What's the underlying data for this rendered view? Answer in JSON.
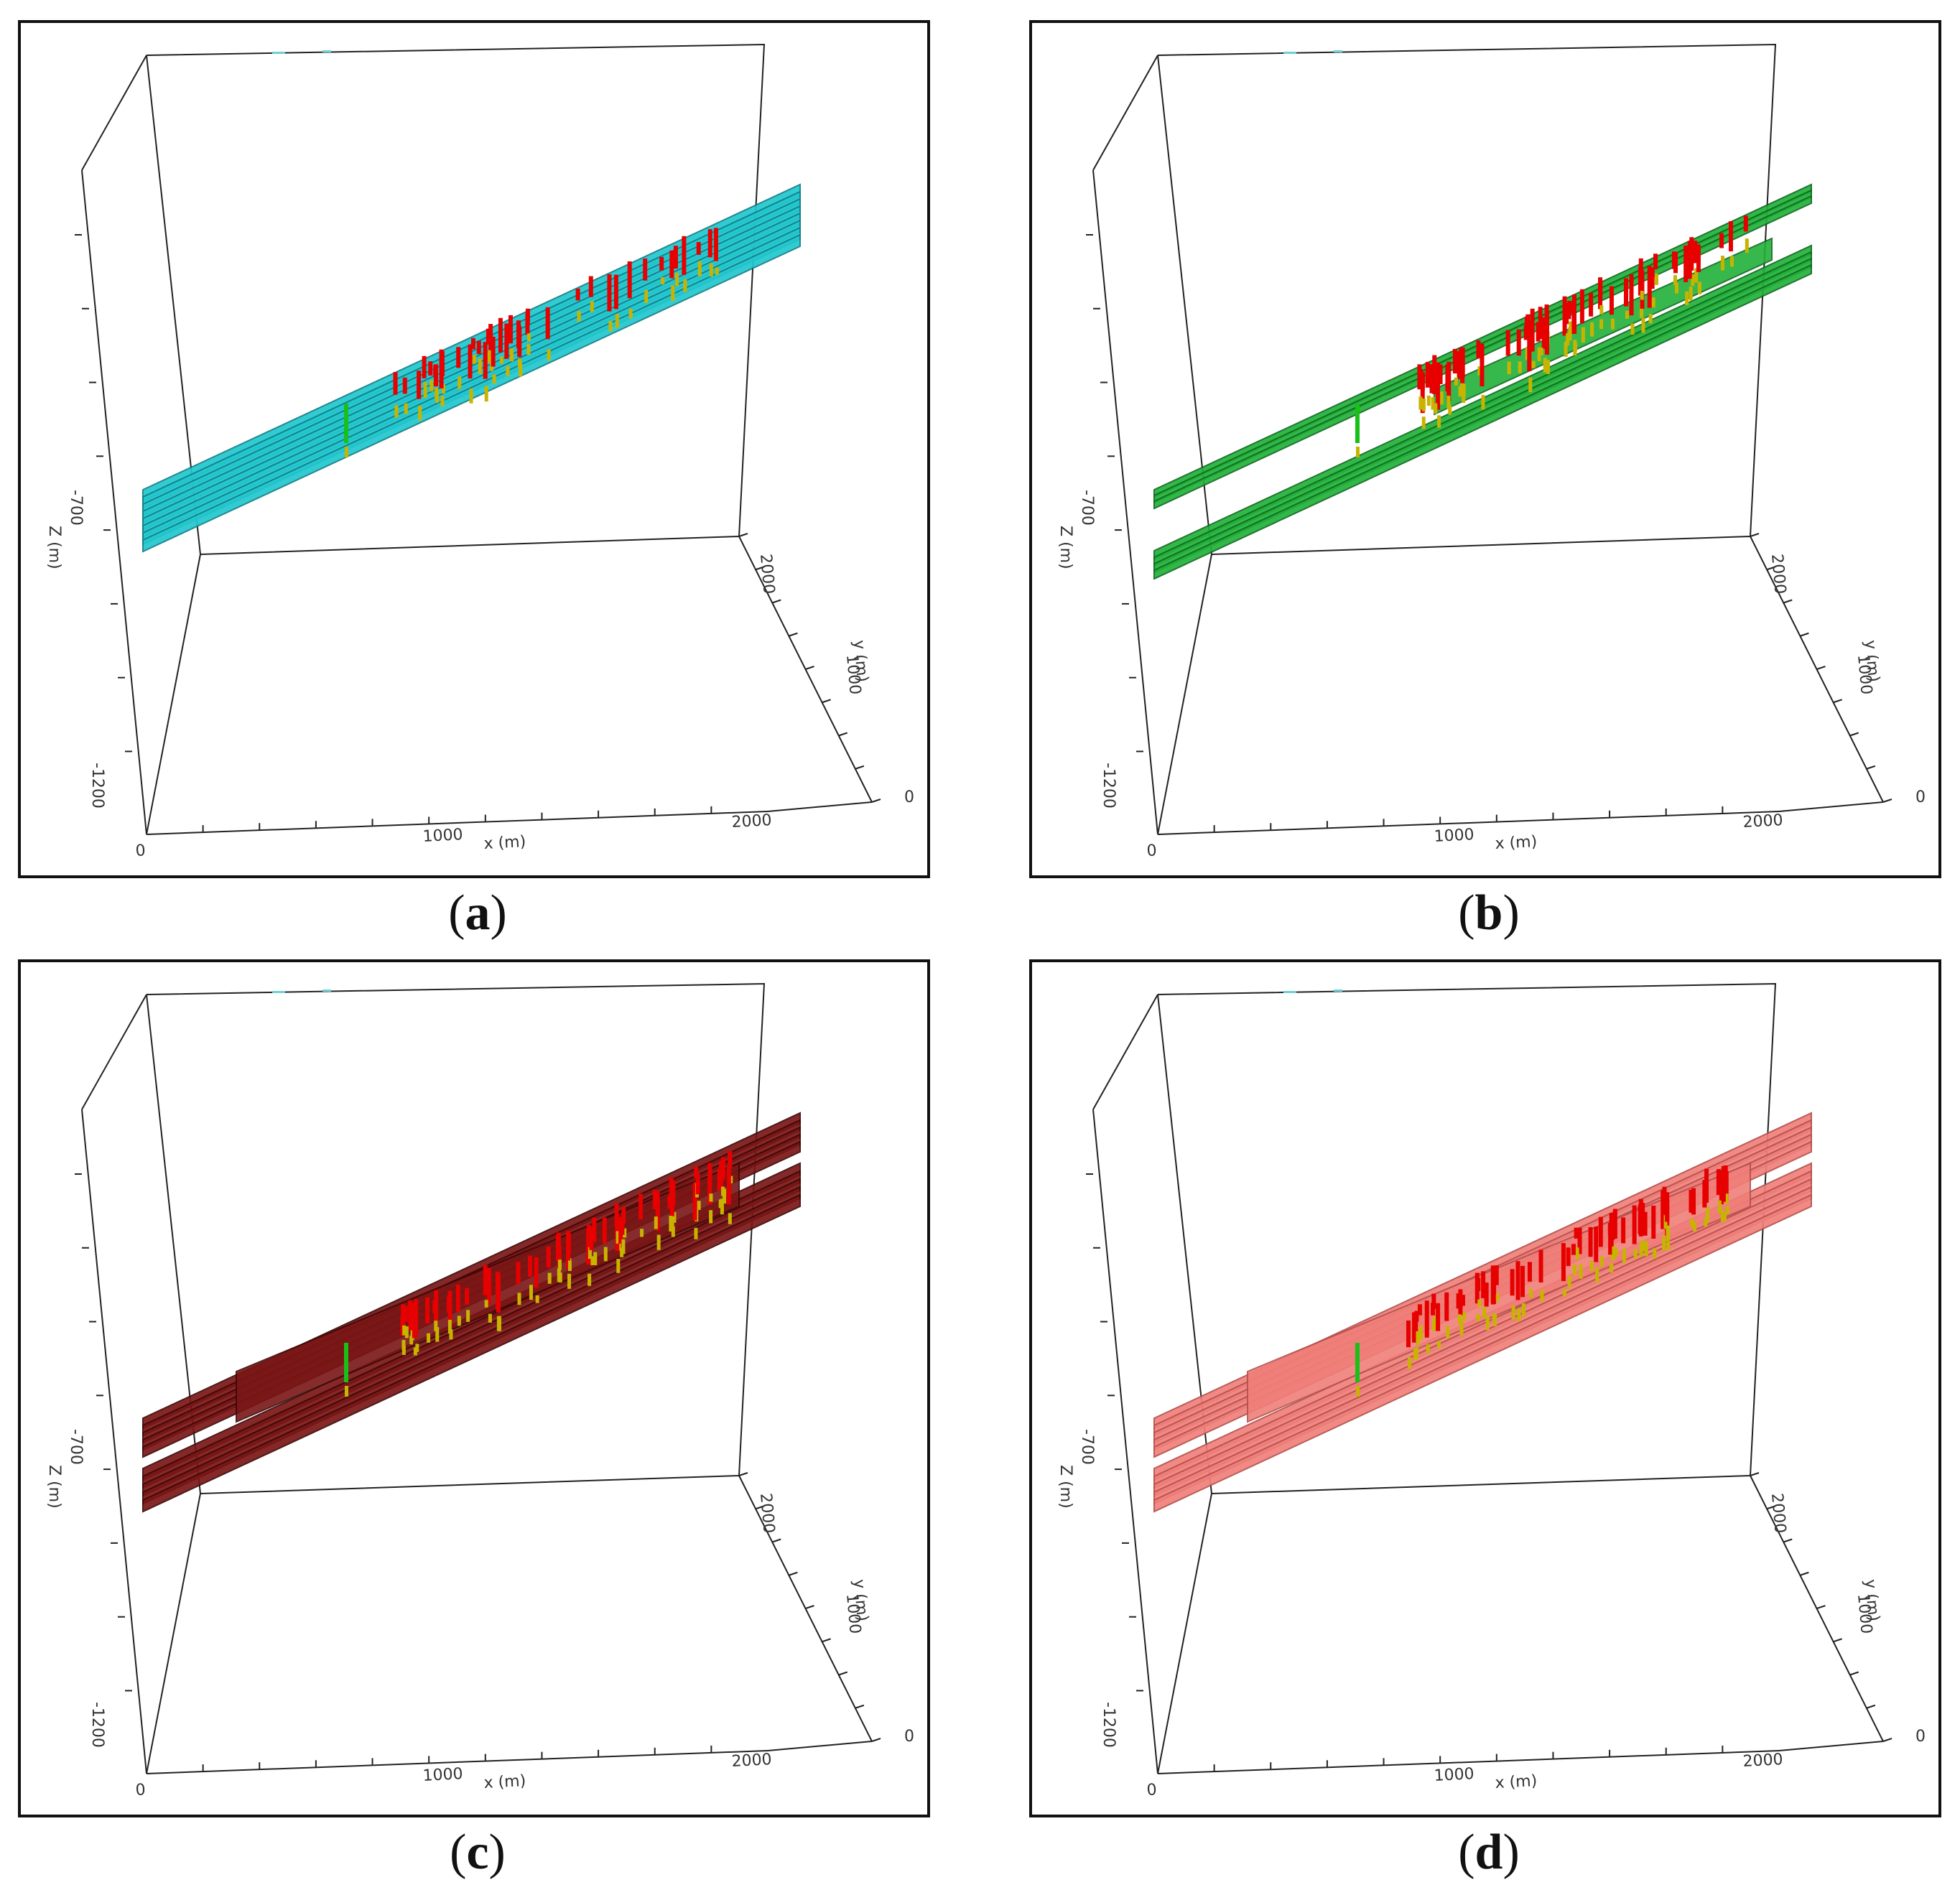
{
  "figure": {
    "panels": [
      {
        "id": "a",
        "caption_letter": "a",
        "surface_color": "#22c7cf",
        "surface_edge": "#0f7f86",
        "variant": "stack"
      },
      {
        "id": "b",
        "caption_letter": "b",
        "surface_color": "#22b13a",
        "surface_edge": "#0e6a1f",
        "variant": "split"
      },
      {
        "id": "c",
        "caption_letter": "c",
        "surface_color": "#7a1616",
        "surface_edge": "#3d0707",
        "variant": "wedge"
      },
      {
        "id": "d",
        "caption_letter": "d",
        "surface_color": "#f07f7a",
        "surface_edge": "#b5504c",
        "variant": "wedge"
      }
    ],
    "axes": {
      "x_label": "x (m)",
      "x_ticks": [
        "0",
        "1000",
        "2000"
      ],
      "z_label": "Z (m)",
      "z_ticks": [
        "-700",
        "-1200"
      ],
      "y_label": "y (m)",
      "y_ticks": [
        "0",
        "1000",
        "2000"
      ]
    },
    "well_colors": {
      "red": "#e60000",
      "yellow": "#c8b400",
      "green": "#18c018"
    }
  }
}
